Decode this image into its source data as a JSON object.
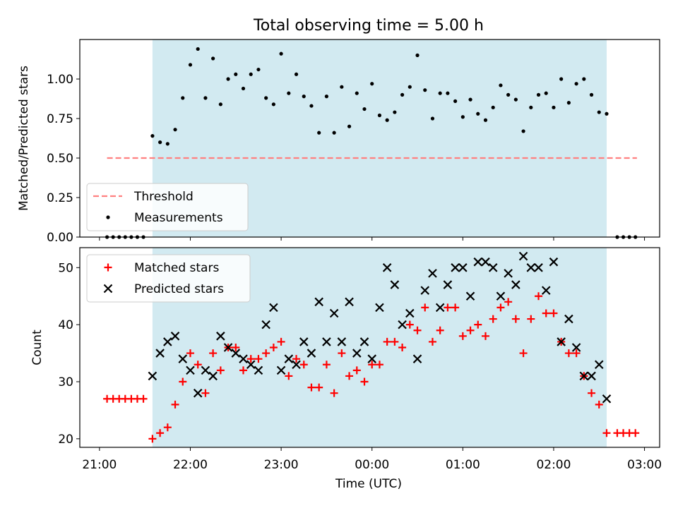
{
  "chart_data": {
    "title": "Total observing time = 5.00 h",
    "xlabel": "Time (UTC)",
    "xlim": [
      "20:47",
      "03:10"
    ],
    "xticks": [
      "21:00",
      "22:00",
      "23:00",
      "00:00",
      "01:00",
      "02:00",
      "03:00"
    ],
    "shaded_interval": {
      "start": "21:35",
      "end": "02:35",
      "color": "#add8e6"
    },
    "colors": {
      "threshold": "#ff8080",
      "measurements": "#000000",
      "matched": "#ff0000",
      "predicted": "#000000",
      "shade": "#add8e6"
    },
    "panels": [
      {
        "type": "scatter",
        "ylabel": "Matched/Predicted stars",
        "ylim": [
          0,
          1.25
        ],
        "yticks": [
          0.0,
          0.25,
          0.5,
          0.75,
          1.0
        ],
        "ytick_labels": [
          "0.00",
          "0.25",
          "0.50",
          "0.75",
          "1.00"
        ],
        "legend": {
          "placement": "lower-left",
          "entries": [
            "Threshold",
            "Measurements"
          ]
        },
        "threshold": {
          "name": "Threshold",
          "y": 0.5,
          "x_start": "21:05",
          "x_end": "02:55"
        },
        "series": [
          {
            "name": "Measurements",
            "x": [
              "21:05",
              "21:09",
              "21:13",
              "21:17",
              "21:21",
              "21:25",
              "21:29",
              "21:35",
              "21:40",
              "21:45",
              "21:50",
              "21:55",
              "22:00",
              "22:05",
              "22:10",
              "22:15",
              "22:20",
              "22:25",
              "22:30",
              "22:35",
              "22:40",
              "22:45",
              "22:50",
              "22:55",
              "23:00",
              "23:05",
              "23:10",
              "23:15",
              "23:20",
              "23:25",
              "23:30",
              "23:35",
              "23:40",
              "23:45",
              "23:50",
              "23:55",
              "00:00",
              "00:05",
              "00:10",
              "00:15",
              "00:20",
              "00:25",
              "00:30",
              "00:35",
              "00:40",
              "00:45",
              "00:50",
              "00:55",
              "01:00",
              "01:05",
              "01:10",
              "01:15",
              "01:20",
              "01:25",
              "01:30",
              "01:35",
              "01:40",
              "01:45",
              "01:50",
              "01:55",
              "02:00",
              "02:05",
              "02:10",
              "02:15",
              "02:20",
              "02:25",
              "02:30",
              "02:35",
              "02:42",
              "02:46",
              "02:50",
              "02:54"
            ],
            "y": [
              0,
              0,
              0,
              0,
              0,
              0,
              0,
              0.64,
              0.6,
              0.59,
              0.68,
              0.88,
              1.09,
              1.19,
              0.88,
              1.13,
              0.84,
              1.0,
              1.03,
              0.94,
              1.03,
              1.06,
              0.88,
              0.84,
              1.16,
              0.91,
              1.03,
              0.89,
              0.83,
              0.66,
              0.89,
              0.66,
              0.95,
              0.7,
              0.91,
              0.81,
              0.97,
              0.77,
              0.74,
              0.79,
              0.9,
              0.95,
              1.15,
              0.93,
              0.75,
              0.91,
              0.91,
              0.86,
              0.76,
              0.87,
              0.78,
              0.74,
              0.82,
              0.96,
              0.9,
              0.87,
              0.67,
              0.82,
              0.9,
              0.91,
              0.82,
              1.0,
              0.85,
              0.97,
              1.0,
              0.9,
              0.79,
              0.78,
              0,
              0,
              0,
              0
            ]
          }
        ]
      },
      {
        "type": "scatter",
        "ylabel": "Count",
        "ylim": [
          18.5,
          53.5
        ],
        "yticks": [
          20,
          30,
          40,
          50
        ],
        "ytick_labels": [
          "20",
          "30",
          "40",
          "50"
        ],
        "legend": {
          "placement": "upper-left",
          "entries": [
            "Matched stars",
            "Predicted stars"
          ]
        },
        "series": [
          {
            "name": "Matched stars",
            "marker": "plus",
            "x": [
              "21:05",
              "21:09",
              "21:13",
              "21:17",
              "21:21",
              "21:25",
              "21:29",
              "21:35",
              "21:40",
              "21:45",
              "21:50",
              "21:55",
              "22:00",
              "22:05",
              "22:10",
              "22:15",
              "22:20",
              "22:25",
              "22:30",
              "22:35",
              "22:40",
              "22:45",
              "22:50",
              "22:55",
              "23:00",
              "23:05",
              "23:10",
              "23:15",
              "23:20",
              "23:25",
              "23:30",
              "23:35",
              "23:40",
              "23:45",
              "23:50",
              "23:55",
              "00:00",
              "00:05",
              "00:10",
              "00:15",
              "00:20",
              "00:25",
              "00:30",
              "00:35",
              "00:40",
              "00:45",
              "00:50",
              "00:55",
              "01:00",
              "01:05",
              "01:10",
              "01:15",
              "01:20",
              "01:25",
              "01:30",
              "01:35",
              "01:40",
              "01:45",
              "01:50",
              "01:55",
              "02:00",
              "02:05",
              "02:10",
              "02:15",
              "02:20",
              "02:25",
              "02:30",
              "02:35",
              "02:42",
              "02:46",
              "02:50",
              "02:54"
            ],
            "y": [
              27,
              27,
              27,
              27,
              27,
              27,
              27,
              20,
              21,
              22,
              26,
              30,
              35,
              33,
              28,
              35,
              32,
              36,
              36,
              32,
              34,
              34,
              35,
              36,
              37,
              31,
              34,
              33,
              29,
              29,
              33,
              28,
              35,
              31,
              32,
              30,
              33,
              33,
              37,
              37,
              36,
              40,
              39,
              43,
              37,
              39,
              43,
              43,
              38,
              39,
              40,
              38,
              41,
              43,
              44,
              41,
              35,
              41,
              45,
              42,
              42,
              37,
              35,
              35,
              31,
              28,
              26,
              21,
              21,
              21,
              21,
              21
            ]
          },
          {
            "name": "Predicted stars",
            "marker": "x",
            "x": [
              "21:35",
              "21:40",
              "21:45",
              "21:50",
              "21:55",
              "22:00",
              "22:05",
              "22:10",
              "22:15",
              "22:20",
              "22:25",
              "22:30",
              "22:35",
              "22:40",
              "22:45",
              "22:50",
              "22:55",
              "23:00",
              "23:05",
              "23:10",
              "23:15",
              "23:20",
              "23:25",
              "23:30",
              "23:35",
              "23:40",
              "23:45",
              "23:50",
              "23:55",
              "00:00",
              "00:05",
              "00:10",
              "00:15",
              "00:20",
              "00:25",
              "00:30",
              "00:35",
              "00:40",
              "00:45",
              "00:50",
              "00:55",
              "01:00",
              "01:05",
              "01:10",
              "01:15",
              "01:20",
              "01:25",
              "01:30",
              "01:35",
              "01:40",
              "01:45",
              "01:50",
              "01:55",
              "02:00",
              "02:05",
              "02:10",
              "02:15",
              "02:20",
              "02:25",
              "02:30",
              "02:35"
            ],
            "y": [
              31,
              35,
              37,
              38,
              34,
              32,
              28,
              32,
              31,
              38,
              36,
              35,
              34,
              33,
              32,
              40,
              43,
              32,
              34,
              33,
              37,
              35,
              44,
              37,
              42,
              37,
              44,
              35,
              37,
              34,
              43,
              50,
              47,
              40,
              42,
              34,
              46,
              49,
              43,
              47,
              50,
              50,
              45,
              51,
              51,
              50,
              45,
              49,
              47,
              52,
              50,
              50,
              46,
              51,
              37,
              41,
              36,
              31,
              31,
              33,
              27
            ]
          }
        ]
      }
    ]
  }
}
